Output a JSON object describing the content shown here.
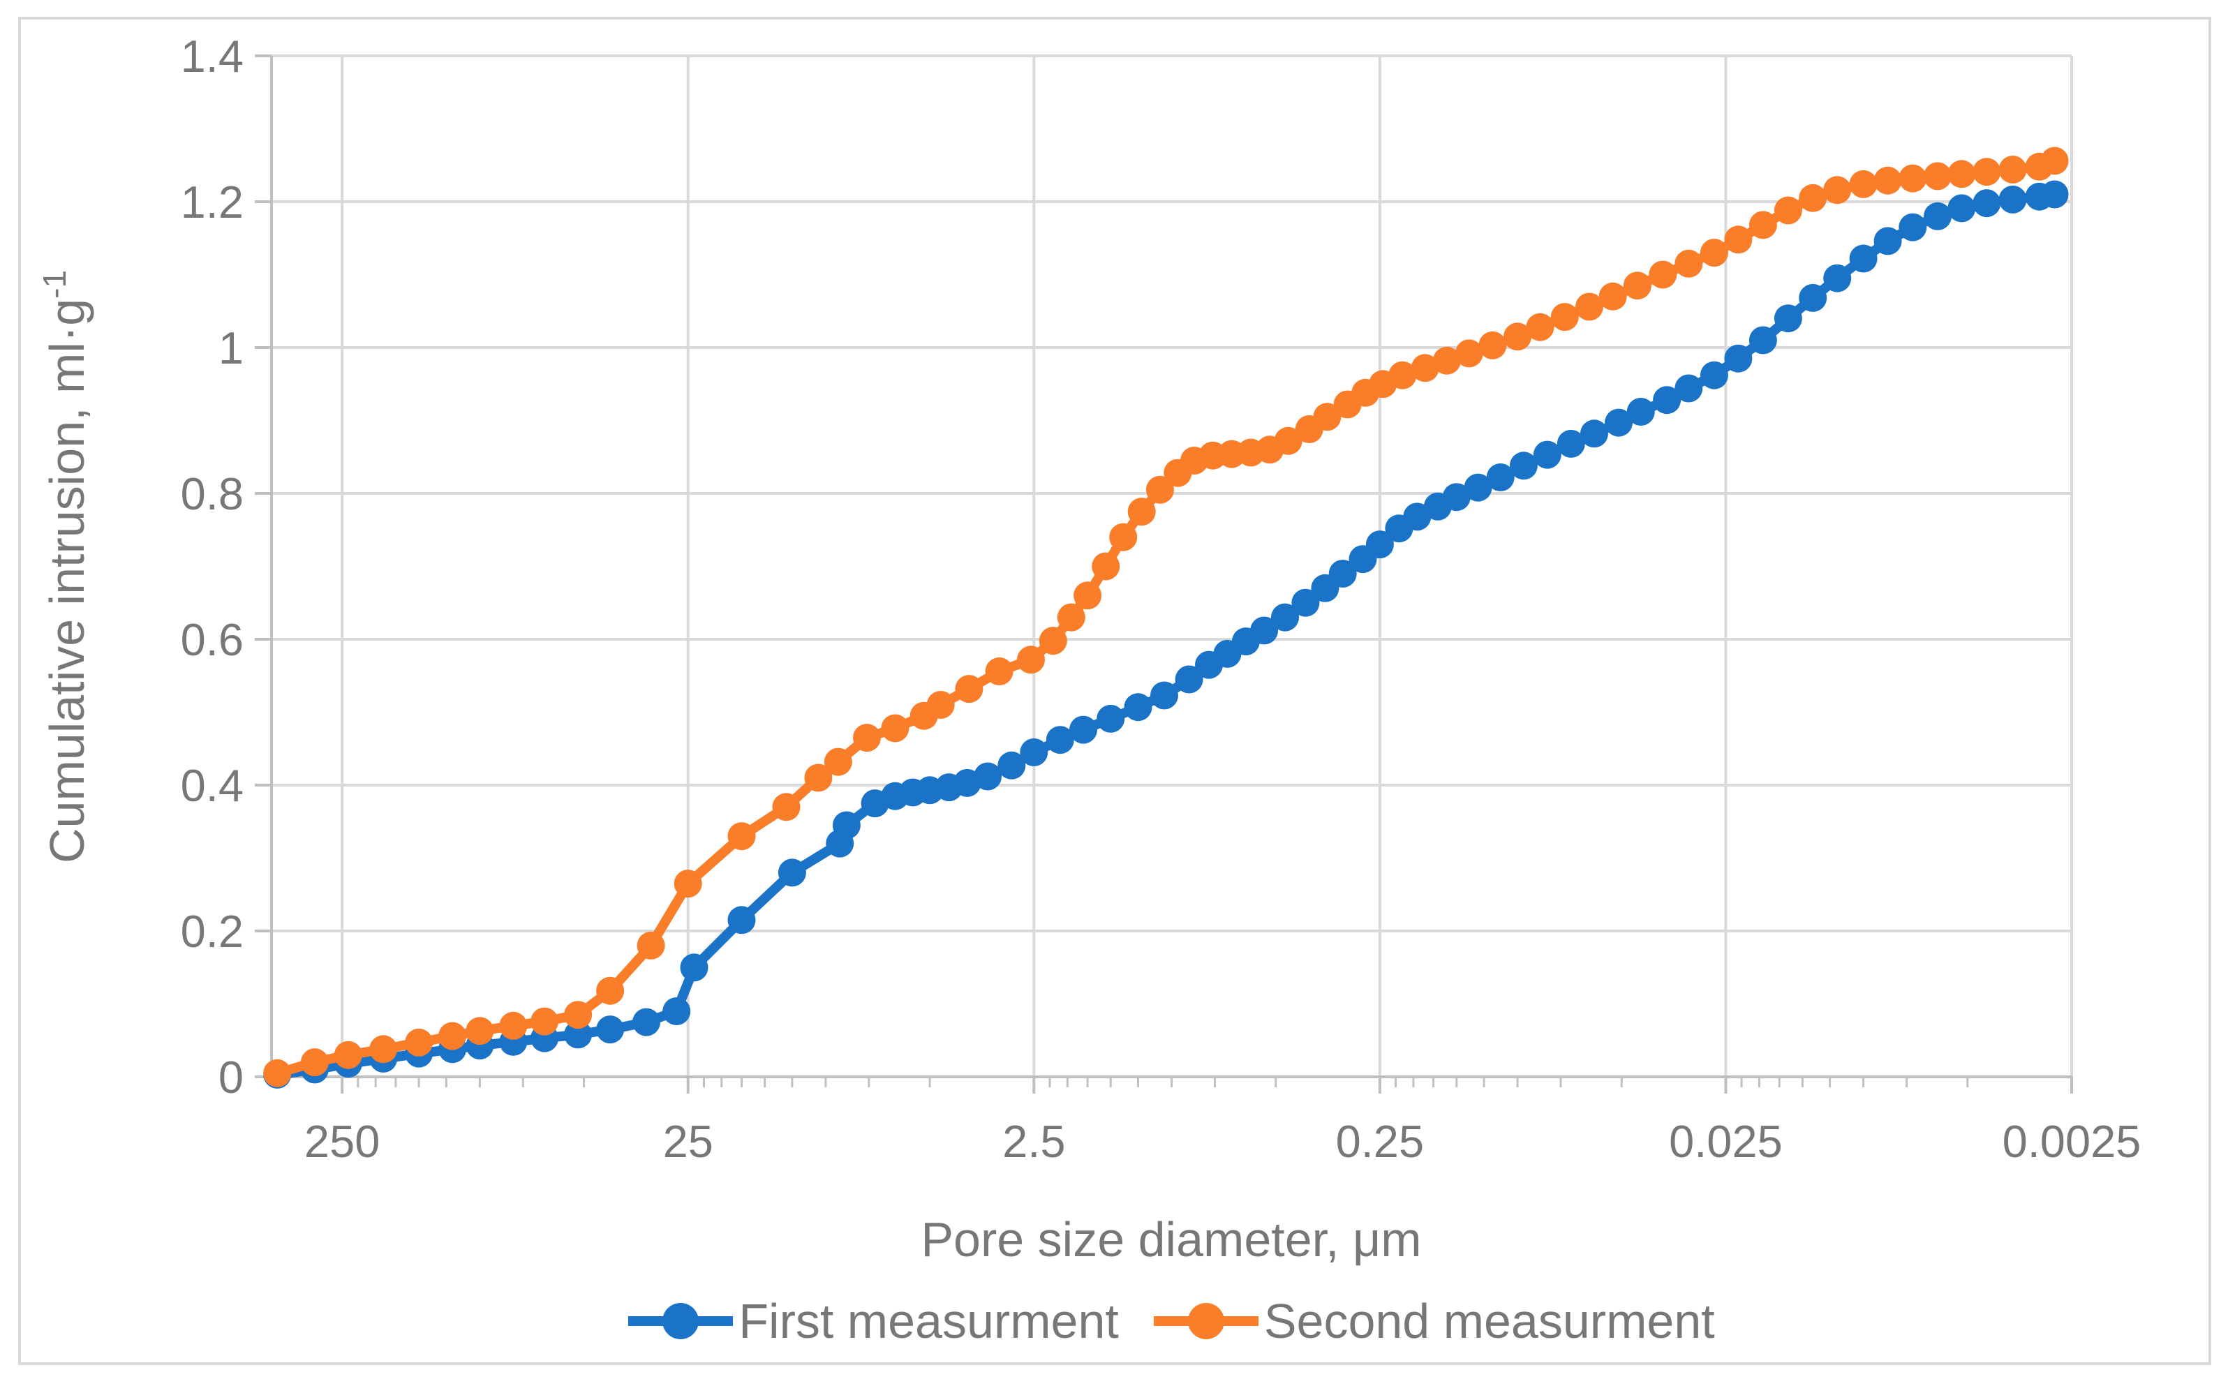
{
  "chart_data": {
    "type": "line",
    "title": "",
    "xlabel": "Pore size diameter, μm",
    "ylabel_main": "Cumulative intrusion, ml·g",
    "ylabel_sup": "-1",
    "x_axis": {
      "scale": "log",
      "reversed": true,
      "max": 400,
      "min": 0.0025,
      "tick_values": [
        250,
        25,
        2.5,
        0.25,
        0.025,
        0.0025
      ],
      "tick_labels": [
        "250",
        "25",
        "2.5",
        "0.25",
        "0.025",
        "0.0025"
      ],
      "minor_tick_bases": [
        250,
        25,
        2.5,
        0.25,
        0.025
      ]
    },
    "y_axis": {
      "min": 0,
      "max": 1.4,
      "step": 0.2,
      "tick_labels": [
        "1.4",
        "1.2",
        "1",
        "0.8",
        "0.6",
        "0.4",
        "0.2",
        "0"
      ]
    },
    "grid": true,
    "legend_position": "bottom",
    "colors": {
      "grid": "#D9D9D9",
      "axis": "#BFBFBF",
      "text": "#777777",
      "border": "#D9D9D9",
      "background": "#FFFFFF"
    },
    "series": [
      {
        "name": "First measurment",
        "color": "#1B73C8",
        "points": [
          [
            385,
            0.003
          ],
          [
            300,
            0.01
          ],
          [
            240,
            0.018
          ],
          [
            190,
            0.025
          ],
          [
            150,
            0.032
          ],
          [
            120,
            0.038
          ],
          [
            100,
            0.043
          ],
          [
            80,
            0.048
          ],
          [
            65,
            0.053
          ],
          [
            52,
            0.058
          ],
          [
            42,
            0.065
          ],
          [
            33,
            0.075
          ],
          [
            27,
            0.09
          ],
          [
            24,
            0.15
          ],
          [
            17.5,
            0.215
          ],
          [
            12.5,
            0.28
          ],
          [
            9.1,
            0.32
          ],
          [
            8.7,
            0.345
          ],
          [
            7.2,
            0.375
          ],
          [
            6.3,
            0.385
          ],
          [
            5.6,
            0.39
          ],
          [
            5.0,
            0.393
          ],
          [
            4.4,
            0.397
          ],
          [
            3.9,
            0.403
          ],
          [
            3.4,
            0.412
          ],
          [
            2.9,
            0.427
          ],
          [
            2.5,
            0.445
          ],
          [
            2.1,
            0.462
          ],
          [
            1.8,
            0.476
          ],
          [
            1.5,
            0.491
          ],
          [
            1.25,
            0.507
          ],
          [
            1.05,
            0.523
          ],
          [
            0.89,
            0.545
          ],
          [
            0.78,
            0.565
          ],
          [
            0.69,
            0.58
          ],
          [
            0.61,
            0.597
          ],
          [
            0.54,
            0.612
          ],
          [
            0.47,
            0.63
          ],
          [
            0.41,
            0.65
          ],
          [
            0.36,
            0.67
          ],
          [
            0.32,
            0.69
          ],
          [
            0.28,
            0.71
          ],
          [
            0.25,
            0.73
          ],
          [
            0.22,
            0.752
          ],
          [
            0.195,
            0.768
          ],
          [
            0.17,
            0.782
          ],
          [
            0.15,
            0.795
          ],
          [
            0.13,
            0.808
          ],
          [
            0.112,
            0.822
          ],
          [
            0.096,
            0.838
          ],
          [
            0.082,
            0.853
          ],
          [
            0.07,
            0.868
          ],
          [
            0.06,
            0.882
          ],
          [
            0.051,
            0.897
          ],
          [
            0.044,
            0.912
          ],
          [
            0.037,
            0.928
          ],
          [
            0.032,
            0.944
          ],
          [
            0.027,
            0.962
          ],
          [
            0.023,
            0.985
          ],
          [
            0.0195,
            1.01
          ],
          [
            0.0165,
            1.04
          ],
          [
            0.014,
            1.068
          ],
          [
            0.0119,
            1.095
          ],
          [
            0.01,
            1.122
          ],
          [
            0.0085,
            1.146
          ],
          [
            0.0072,
            1.165
          ],
          [
            0.0061,
            1.18
          ],
          [
            0.0052,
            1.191
          ],
          [
            0.0044,
            1.198
          ],
          [
            0.0037,
            1.203
          ],
          [
            0.0031,
            1.207
          ],
          [
            0.0028,
            1.21
          ]
        ]
      },
      {
        "name": "Second measurment",
        "color": "#FA7E2A",
        "points": [
          [
            385,
            0.005
          ],
          [
            300,
            0.02
          ],
          [
            240,
            0.03
          ],
          [
            190,
            0.038
          ],
          [
            150,
            0.047
          ],
          [
            120,
            0.056
          ],
          [
            100,
            0.063
          ],
          [
            80,
            0.07
          ],
          [
            65,
            0.076
          ],
          [
            52,
            0.085
          ],
          [
            42,
            0.118
          ],
          [
            32,
            0.18
          ],
          [
            25,
            0.265
          ],
          [
            17.5,
            0.33
          ],
          [
            13,
            0.37
          ],
          [
            10.5,
            0.41
          ],
          [
            9.2,
            0.432
          ],
          [
            7.6,
            0.465
          ],
          [
            6.3,
            0.478
          ],
          [
            5.2,
            0.495
          ],
          [
            4.65,
            0.51
          ],
          [
            3.85,
            0.532
          ],
          [
            3.15,
            0.556
          ],
          [
            2.55,
            0.572
          ],
          [
            2.2,
            0.598
          ],
          [
            1.95,
            0.63
          ],
          [
            1.75,
            0.66
          ],
          [
            1.55,
            0.7
          ],
          [
            1.38,
            0.74
          ],
          [
            1.22,
            0.775
          ],
          [
            1.08,
            0.805
          ],
          [
            0.96,
            0.828
          ],
          [
            0.86,
            0.845
          ],
          [
            0.76,
            0.852
          ],
          [
            0.67,
            0.854
          ],
          [
            0.59,
            0.856
          ],
          [
            0.52,
            0.86
          ],
          [
            0.46,
            0.872
          ],
          [
            0.4,
            0.888
          ],
          [
            0.355,
            0.905
          ],
          [
            0.31,
            0.922
          ],
          [
            0.275,
            0.938
          ],
          [
            0.245,
            0.95
          ],
          [
            0.215,
            0.962
          ],
          [
            0.185,
            0.972
          ],
          [
            0.16,
            0.982
          ],
          [
            0.138,
            0.992
          ],
          [
            0.118,
            1.003
          ],
          [
            0.1,
            1.015
          ],
          [
            0.086,
            1.028
          ],
          [
            0.073,
            1.042
          ],
          [
            0.062,
            1.056
          ],
          [
            0.053,
            1.07
          ],
          [
            0.045,
            1.085
          ],
          [
            0.038,
            1.1
          ],
          [
            0.032,
            1.115
          ],
          [
            0.027,
            1.13
          ],
          [
            0.023,
            1.148
          ],
          [
            0.0195,
            1.168
          ],
          [
            0.0165,
            1.188
          ],
          [
            0.014,
            1.205
          ],
          [
            0.0119,
            1.216
          ],
          [
            0.01,
            1.224
          ],
          [
            0.0085,
            1.229
          ],
          [
            0.0072,
            1.232
          ],
          [
            0.0061,
            1.235
          ],
          [
            0.0052,
            1.238
          ],
          [
            0.0044,
            1.241
          ],
          [
            0.0037,
            1.244
          ],
          [
            0.0031,
            1.248
          ],
          [
            0.0028,
            1.256
          ]
        ]
      }
    ]
  },
  "legend": {
    "first_label": "First measurment",
    "second_label": "Second measurment"
  }
}
